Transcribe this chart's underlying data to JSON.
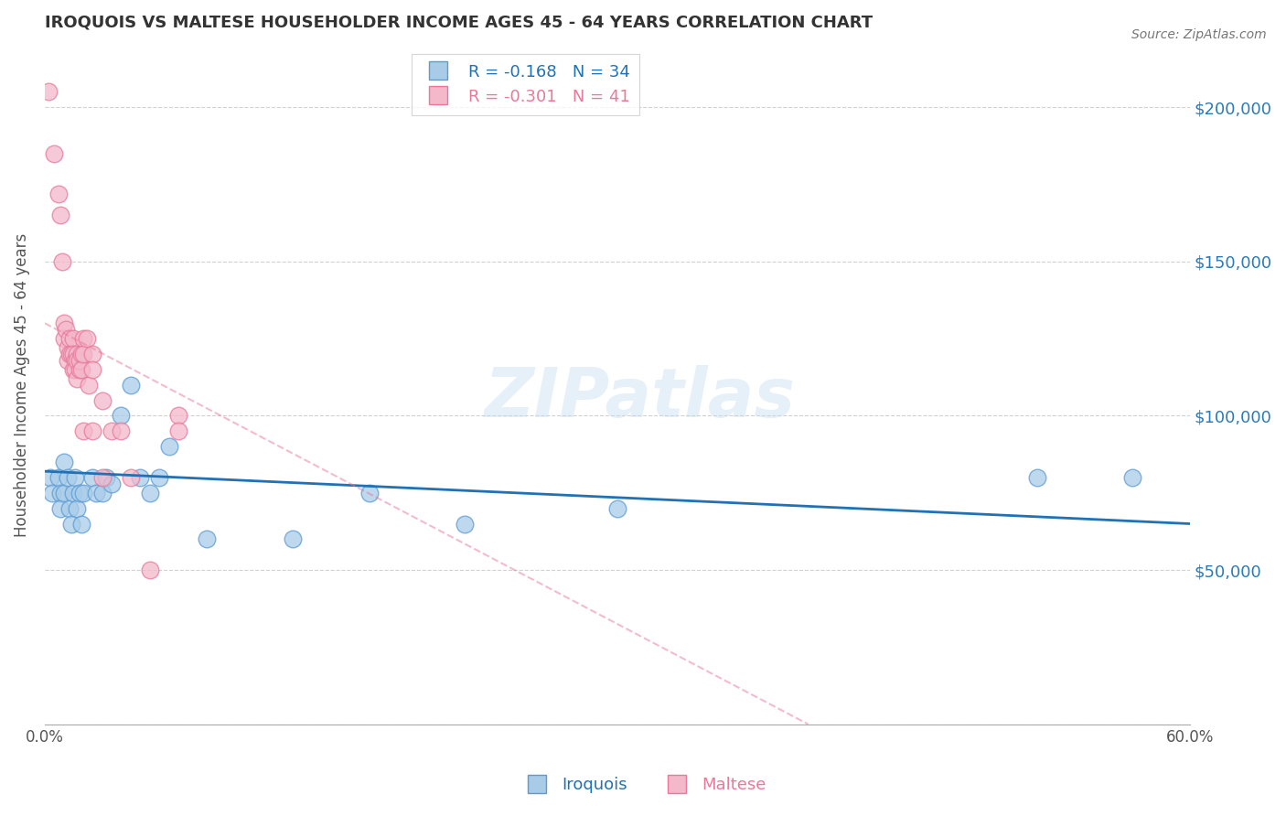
{
  "title": "IROQUOIS VS MALTESE HOUSEHOLDER INCOME AGES 45 - 64 YEARS CORRELATION CHART",
  "source": "Source: ZipAtlas.com",
  "ylabel": "Householder Income Ages 45 - 64 years",
  "xlim": [
    0.0,
    0.6
  ],
  "ylim": [
    0,
    220000
  ],
  "yticks": [
    0,
    50000,
    100000,
    150000,
    200000
  ],
  "ytick_labels": [
    "",
    "$50,000",
    "$100,000",
    "$150,000",
    "$200,000"
  ],
  "xticks": [
    0.0,
    0.1,
    0.2,
    0.3,
    0.4,
    0.5,
    0.6
  ],
  "xtick_labels": [
    "0.0%",
    "",
    "",
    "",
    "",
    "",
    "60.0%"
  ],
  "iroquois_color": "#a8cce8",
  "maltese_color": "#f4b8cb",
  "iroquois_edge_color": "#5b9bd5",
  "maltese_edge_color": "#e8799a",
  "iroquois_line_color": "#2171b5",
  "maltese_line_color": "#e8799a",
  "iroquois_R": -0.168,
  "iroquois_N": 34,
  "maltese_R": -0.301,
  "maltese_N": 41,
  "legend_label_iroquois": "Iroquois",
  "legend_label_maltese": "Maltese",
  "watermark": "ZIPatlas",
  "iroquois_x": [
    0.003,
    0.004,
    0.007,
    0.008,
    0.008,
    0.01,
    0.01,
    0.012,
    0.013,
    0.014,
    0.015,
    0.016,
    0.017,
    0.018,
    0.019,
    0.02,
    0.025,
    0.027,
    0.03,
    0.032,
    0.035,
    0.04,
    0.045,
    0.05,
    0.055,
    0.06,
    0.065,
    0.085,
    0.13,
    0.17,
    0.22,
    0.3,
    0.52,
    0.57
  ],
  "iroquois_y": [
    80000,
    75000,
    80000,
    75000,
    70000,
    85000,
    75000,
    80000,
    70000,
    65000,
    75000,
    80000,
    70000,
    75000,
    65000,
    75000,
    80000,
    75000,
    75000,
    80000,
    78000,
    100000,
    110000,
    80000,
    75000,
    80000,
    90000,
    60000,
    60000,
    75000,
    65000,
    70000,
    80000,
    80000
  ],
  "maltese_x": [
    0.002,
    0.005,
    0.007,
    0.008,
    0.009,
    0.01,
    0.01,
    0.011,
    0.012,
    0.012,
    0.013,
    0.013,
    0.014,
    0.015,
    0.015,
    0.015,
    0.016,
    0.016,
    0.017,
    0.017,
    0.017,
    0.018,
    0.018,
    0.019,
    0.019,
    0.02,
    0.02,
    0.02,
    0.022,
    0.023,
    0.025,
    0.025,
    0.025,
    0.03,
    0.03,
    0.035,
    0.04,
    0.045,
    0.055,
    0.07,
    0.07
  ],
  "maltese_y": [
    205000,
    185000,
    172000,
    165000,
    150000,
    130000,
    125000,
    128000,
    122000,
    118000,
    125000,
    120000,
    120000,
    125000,
    120000,
    115000,
    118000,
    115000,
    120000,
    118000,
    112000,
    115000,
    118000,
    120000,
    115000,
    125000,
    120000,
    95000,
    125000,
    110000,
    120000,
    115000,
    95000,
    105000,
    80000,
    95000,
    95000,
    80000,
    50000,
    100000,
    95000
  ],
  "iroquois_line_x": [
    0.0,
    0.6
  ],
  "iroquois_line_y": [
    82000,
    65000
  ],
  "maltese_line_x": [
    0.0,
    0.4
  ],
  "maltese_line_y": [
    130000,
    0
  ]
}
